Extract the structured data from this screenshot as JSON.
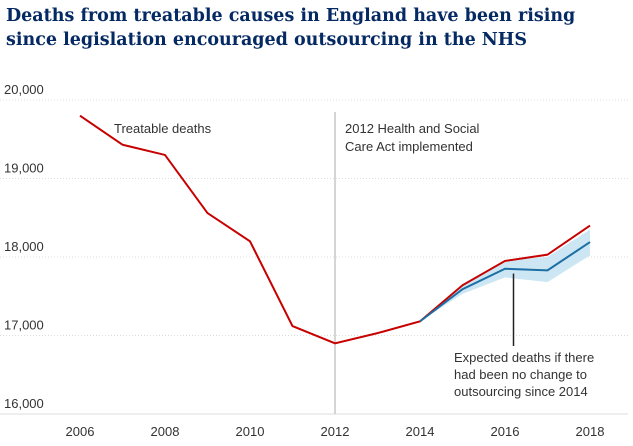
{
  "colors": {
    "title": "#052962",
    "treatable": "#c70000",
    "expected": "#1c6ea4",
    "band": "#cce7f3",
    "grid": "#dcdcdc",
    "vline": "#c7c7c7",
    "text": "#333333"
  },
  "chart_data": {
    "type": "line",
    "title": "Deaths from treatable causes in England have been rising since legislation encouraged outsourcing in the NHS",
    "xlabel": "",
    "ylabel": "",
    "xlim": [
      2005.5,
      2018.5
    ],
    "ylim": [
      16000,
      20000
    ],
    "y_ticks": [
      {
        "value": 20000,
        "label": "20,000"
      },
      {
        "value": 19000,
        "label": "19,000"
      },
      {
        "value": 18000,
        "label": "18,000"
      },
      {
        "value": 17000,
        "label": "17,000"
      },
      {
        "value": 16000,
        "label": "16,000"
      }
    ],
    "x_ticks": [
      {
        "value": 2006,
        "label": "2006"
      },
      {
        "value": 2008,
        "label": "2008"
      },
      {
        "value": 2010,
        "label": "2010"
      },
      {
        "value": 2012,
        "label": "2012"
      },
      {
        "value": 2014,
        "label": "2014"
      },
      {
        "value": 2016,
        "label": "2016"
      },
      {
        "value": 2018,
        "label": "2018"
      }
    ],
    "grid": "horizontal",
    "series": [
      {
        "key": "treatable",
        "x": [
          2006,
          2007,
          2008,
          2009,
          2010,
          2011,
          2012,
          2013,
          2014,
          2015,
          2016,
          2017,
          2018
        ],
        "y": [
          19800,
          19430,
          19300,
          18560,
          18200,
          17120,
          16900,
          17030,
          17180,
          17640,
          17950,
          18030,
          18400
        ]
      },
      {
        "key": "expected",
        "x": [
          2014,
          2015,
          2016,
          2017,
          2018
        ],
        "y": [
          17180,
          17590,
          17850,
          17830,
          18190
        ]
      }
    ],
    "band": {
      "x": [
        2014,
        2015,
        2016,
        2017,
        2018
      ],
      "lower": [
        17180,
        17530,
        17740,
        17680,
        18020
      ],
      "upper": [
        17180,
        17660,
        17960,
        18000,
        18350
      ]
    },
    "annotations": [
      {
        "key": "treatable_label",
        "lines": [
          "Treatable deaths"
        ]
      },
      {
        "key": "act_label",
        "x": 2012,
        "lines": [
          "2012 Health and Social",
          "Care Act implemented"
        ]
      },
      {
        "key": "expected_label",
        "x": 2016.2,
        "lines": [
          "Expected deaths if there",
          "had been no change to",
          "outsourcing since 2014"
        ]
      }
    ]
  }
}
